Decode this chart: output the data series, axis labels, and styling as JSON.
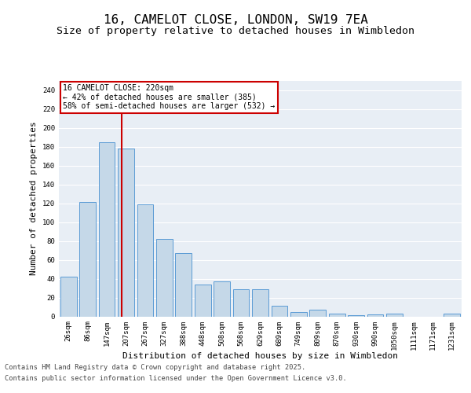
{
  "title_line1": "16, CAMELOT CLOSE, LONDON, SW19 7EA",
  "title_line2": "Size of property relative to detached houses in Wimbledon",
  "xlabel": "Distribution of detached houses by size in Wimbledon",
  "ylabel": "Number of detached properties",
  "categories": [
    "26sqm",
    "86sqm",
    "147sqm",
    "207sqm",
    "267sqm",
    "327sqm",
    "388sqm",
    "448sqm",
    "508sqm",
    "568sqm",
    "629sqm",
    "689sqm",
    "749sqm",
    "809sqm",
    "870sqm",
    "930sqm",
    "990sqm",
    "1050sqm",
    "1111sqm",
    "1171sqm",
    "1231sqm"
  ],
  "values": [
    42,
    121,
    185,
    178,
    119,
    82,
    67,
    34,
    37,
    29,
    29,
    11,
    5,
    7,
    3,
    1,
    2,
    3,
    0,
    0,
    3
  ],
  "bar_color": "#c5d8e8",
  "bar_edge_color": "#5b9bd5",
  "bg_color": "#e8eef5",
  "grid_color": "#ffffff",
  "redline_label": "16 CAMELOT CLOSE: 220sqm",
  "annotation_line2": "← 42% of detached houses are smaller (385)",
  "annotation_line3": "58% of semi-detached houses are larger (532) →",
  "annotation_box_color": "#ffffff",
  "annotation_box_edge": "#cc0000",
  "redline_color": "#cc0000",
  "ylim": [
    0,
    250
  ],
  "yticks": [
    0,
    20,
    40,
    60,
    80,
    100,
    120,
    140,
    160,
    180,
    200,
    220,
    240
  ],
  "footer_line1": "Contains HM Land Registry data © Crown copyright and database right 2025.",
  "footer_line2": "Contains public sector information licensed under the Open Government Licence v3.0.",
  "title_fontsize": 11.5,
  "subtitle_fontsize": 9.5,
  "axis_label_fontsize": 8,
  "tick_fontsize": 6.5,
  "annotation_fontsize": 7,
  "footer_fontsize": 6.2,
  "fig_bg_color": "#ffffff"
}
